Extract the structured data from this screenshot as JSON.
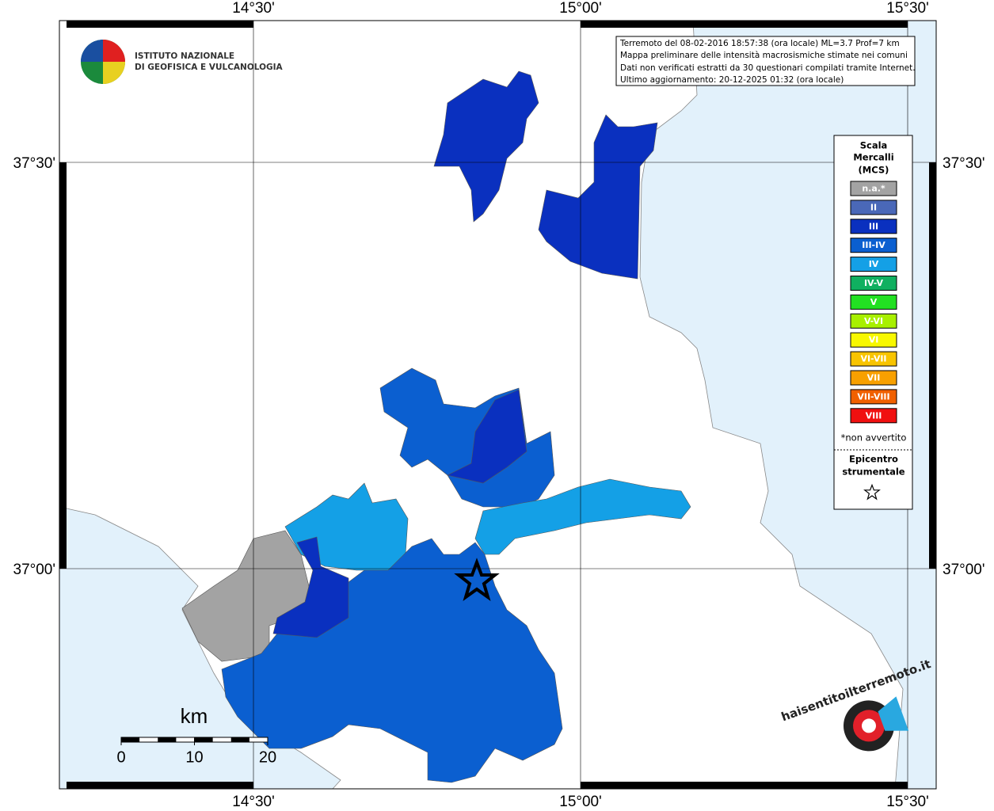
{
  "map": {
    "top_labels": [
      "14°30'",
      "15°00'",
      "15°30'"
    ],
    "bottom_labels": [
      "14°30'",
      "15°00'",
      "15°30'"
    ],
    "left_labels": [
      "37°30'",
      "37°00'"
    ],
    "right_labels": [
      "37°30'",
      "37°00'"
    ],
    "info": [
      "Terremoto del 08-02-2016 18:57:38 (ora locale) ML=3.7 Prof=7 km",
      "Mappa preliminare delle intensità macrosismiche stimate nei comuni",
      "Dati non verificati estratti da 30 questionari compilati tramite Internet.",
      "Ultimo aggiornamento: 20-12-2025 01:32 (ora locale)"
    ],
    "institute": [
      "ISTITUTO NAZIONALE",
      "DI GEOFISICA E VULCANOLOGIA"
    ],
    "legend": {
      "title": [
        "Scala",
        "Mercalli",
        "(MCS)"
      ],
      "items": [
        {
          "label": "n.a.*",
          "color": "#a3a3a3"
        },
        {
          "label": "II",
          "color": "#4a68b8"
        },
        {
          "label": "III",
          "color": "#0a30bf"
        },
        {
          "label": "III-IV",
          "color": "#0b5fd0"
        },
        {
          "label": "IV",
          "color": "#14a0e6"
        },
        {
          "label": "IV-V",
          "color": "#10b060"
        },
        {
          "label": "V",
          "color": "#22e022"
        },
        {
          "label": "V-VI",
          "color": "#a8f000"
        },
        {
          "label": "VI",
          "color": "#f8f800"
        },
        {
          "label": "VI-VII",
          "color": "#f8c400"
        },
        {
          "label": "VII",
          "color": "#f8a000"
        },
        {
          "label": "VII-VIII",
          "color": "#f06000"
        },
        {
          "label": "VIII",
          "color": "#f01010"
        }
      ],
      "note": "*non avvertito",
      "epicenter": [
        "Epicentro",
        "strumentale"
      ]
    },
    "scale": {
      "unit": "km",
      "ticks": [
        0,
        10,
        20
      ]
    },
    "site": "haisentitoilterremoto.it"
  }
}
